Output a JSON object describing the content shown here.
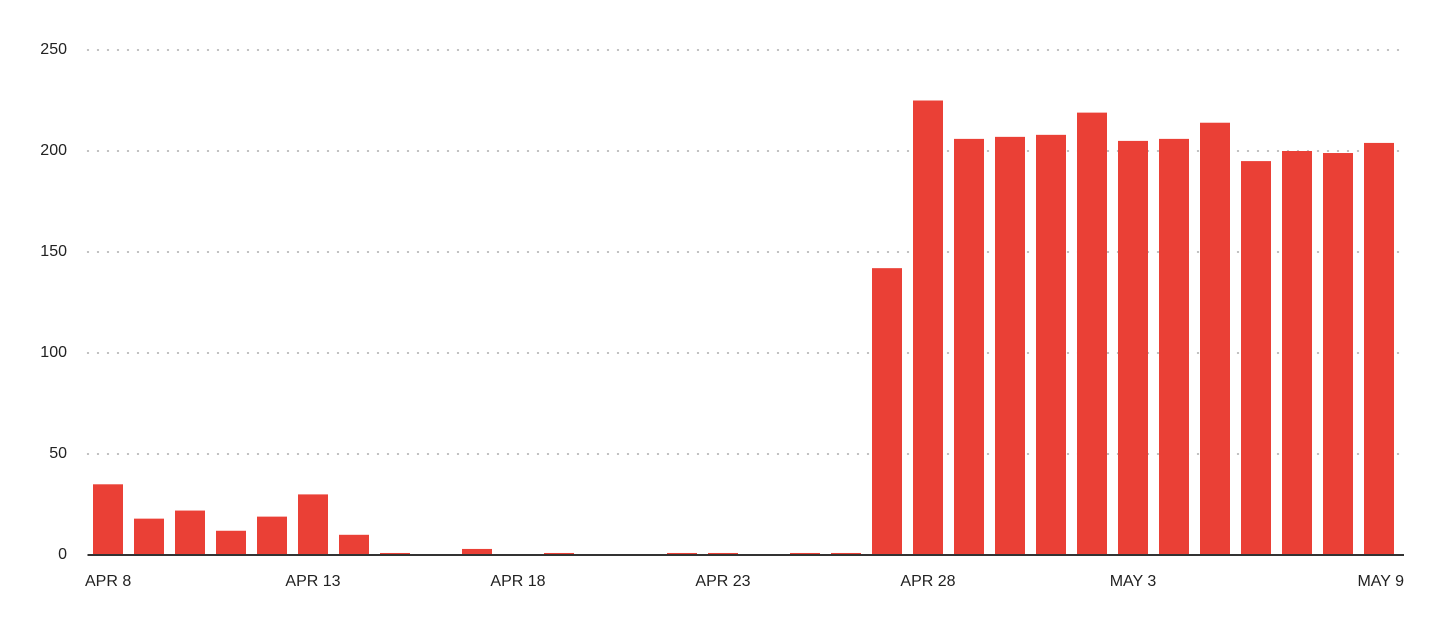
{
  "chart_data": {
    "type": "bar",
    "categories": [
      "APR 8",
      null,
      null,
      null,
      null,
      "APR 13",
      null,
      null,
      null,
      null,
      "APR 18",
      null,
      null,
      null,
      null,
      "APR 23",
      null,
      null,
      null,
      null,
      "APR 28",
      null,
      null,
      null,
      null,
      "MAY 3",
      null,
      null,
      null,
      null,
      null,
      "MAY 9"
    ],
    "values": [
      35,
      18,
      22,
      12,
      19,
      30,
      10,
      1,
      0,
      3,
      0,
      1,
      0,
      0,
      1,
      1,
      0,
      1,
      1,
      142,
      225,
      206,
      207,
      208,
      219,
      205,
      206,
      214,
      195,
      200,
      199,
      204
    ],
    "color": "#ea4036",
    "ylim": [
      0,
      250
    ],
    "yticks": [
      0,
      50,
      100,
      150,
      200,
      250
    ],
    "grid": true
  }
}
